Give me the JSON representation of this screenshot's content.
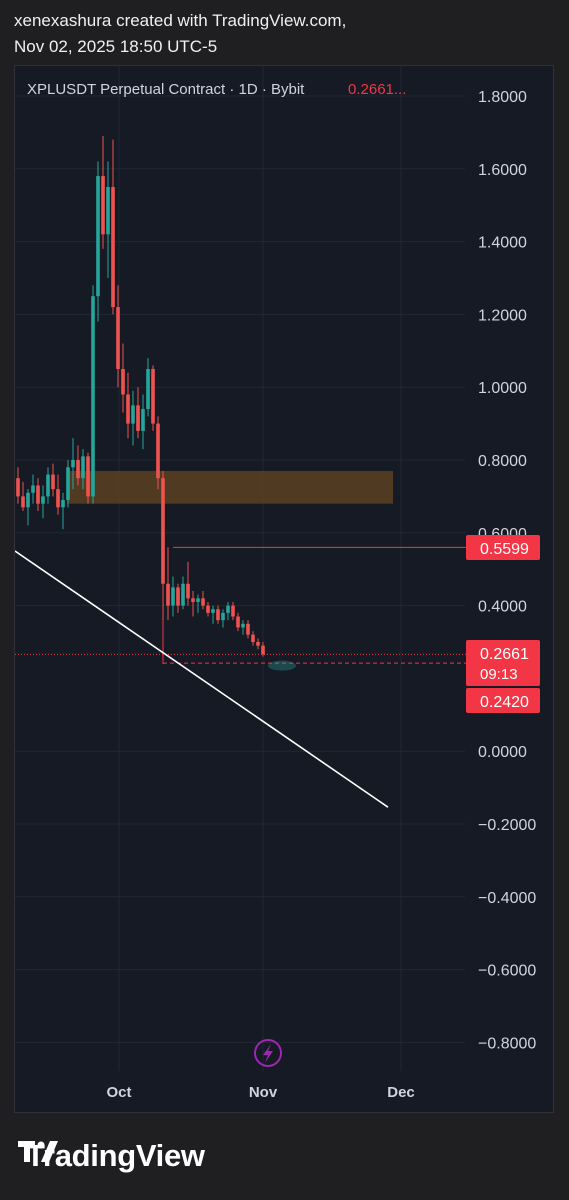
{
  "header": {
    "line1": "xenexashura created with TradingView.com,",
    "line2": "Nov 02, 2025 18:50 UTC-5"
  },
  "legend": {
    "symbol": "XPLUSDT Perpetual Contract · 1D · Bybit",
    "price": "0.2661..."
  },
  "price_badges": {
    "resistance": "0.5599",
    "last": "0.2661",
    "countdown": "09:13",
    "support": "0.2420"
  },
  "footer": {
    "brand": "TradingView"
  },
  "colors": {
    "up": "#26a69a",
    "down": "#ef5350",
    "badge": "#f23645",
    "zone": "#5b4222",
    "trendline": "#ffffff",
    "grid": "#232733",
    "axis_text": "#d1d4dc"
  },
  "chart_data": {
    "type": "candlestick",
    "title": "XPLUSDT Perpetual Contract · 1D · Bybit",
    "y_ticks": [
      "1.8000",
      "1.6000",
      "1.4000",
      "1.2000",
      "1.0000",
      "0.8000",
      "0.6000",
      "0.4000",
      "0.0000",
      "−0.2000",
      "−0.4000",
      "−0.6000",
      "−0.8000"
    ],
    "x_ticks": [
      "Oct",
      "Nov",
      "Dec"
    ],
    "ylim": [
      -0.8,
      1.8
    ],
    "grid": true,
    "last_price": 0.2661,
    "resistance_level": 0.5599,
    "support_level": 0.242,
    "supply_zone": [
      0.68,
      0.77
    ],
    "trendline": [
      [
        0.55,
        0
      ],
      [
        0.11,
        49
      ]
    ],
    "candles": [
      [
        0.75,
        0.78,
        0.68,
        0.7
      ],
      [
        0.7,
        0.74,
        0.66,
        0.67
      ],
      [
        0.67,
        0.72,
        0.62,
        0.71
      ],
      [
        0.71,
        0.76,
        0.68,
        0.73
      ],
      [
        0.73,
        0.75,
        0.66,
        0.68
      ],
      [
        0.68,
        0.73,
        0.64,
        0.7
      ],
      [
        0.7,
        0.78,
        0.68,
        0.76
      ],
      [
        0.76,
        0.79,
        0.7,
        0.72
      ],
      [
        0.72,
        0.76,
        0.65,
        0.67
      ],
      [
        0.67,
        0.71,
        0.61,
        0.69
      ],
      [
        0.69,
        0.8,
        0.67,
        0.78
      ],
      [
        0.78,
        0.86,
        0.72,
        0.8
      ],
      [
        0.8,
        0.84,
        0.73,
        0.75
      ],
      [
        0.75,
        0.83,
        0.72,
        0.81
      ],
      [
        0.81,
        0.82,
        0.68,
        0.7
      ],
      [
        0.7,
        1.28,
        0.68,
        1.25
      ],
      [
        1.25,
        1.62,
        1.18,
        1.58
      ],
      [
        1.58,
        1.69,
        1.38,
        1.42
      ],
      [
        1.42,
        1.62,
        1.3,
        1.55
      ],
      [
        1.55,
        1.68,
        1.2,
        1.22
      ],
      [
        1.22,
        1.28,
        1.0,
        1.05
      ],
      [
        1.05,
        1.12,
        0.93,
        0.98
      ],
      [
        0.98,
        1.04,
        0.86,
        0.9
      ],
      [
        0.9,
        0.99,
        0.84,
        0.95
      ],
      [
        0.95,
        1.0,
        0.86,
        0.88
      ],
      [
        0.88,
        0.98,
        0.83,
        0.94
      ],
      [
        0.94,
        1.08,
        0.92,
        1.05
      ],
      [
        1.05,
        1.06,
        0.88,
        0.9
      ],
      [
        0.9,
        0.92,
        0.72,
        0.75
      ],
      [
        0.75,
        0.77,
        0.24,
        0.46
      ],
      [
        0.46,
        0.56,
        0.36,
        0.4
      ],
      [
        0.4,
        0.48,
        0.37,
        0.45
      ],
      [
        0.45,
        0.46,
        0.38,
        0.4
      ],
      [
        0.4,
        0.48,
        0.39,
        0.46
      ],
      [
        0.46,
        0.52,
        0.4,
        0.42
      ],
      [
        0.42,
        0.44,
        0.37,
        0.41
      ],
      [
        0.41,
        0.43,
        0.38,
        0.42
      ],
      [
        0.42,
        0.44,
        0.39,
        0.4
      ],
      [
        0.4,
        0.41,
        0.37,
        0.38
      ],
      [
        0.38,
        0.4,
        0.35,
        0.39
      ],
      [
        0.39,
        0.4,
        0.35,
        0.36
      ],
      [
        0.36,
        0.39,
        0.34,
        0.38
      ],
      [
        0.38,
        0.41,
        0.36,
        0.4
      ],
      [
        0.4,
        0.41,
        0.36,
        0.37
      ],
      [
        0.37,
        0.38,
        0.33,
        0.34
      ],
      [
        0.34,
        0.36,
        0.32,
        0.35
      ],
      [
        0.35,
        0.36,
        0.31,
        0.32
      ],
      [
        0.32,
        0.33,
        0.29,
        0.3
      ],
      [
        0.3,
        0.31,
        0.28,
        0.29
      ],
      [
        0.29,
        0.3,
        0.26,
        0.2661
      ]
    ]
  }
}
